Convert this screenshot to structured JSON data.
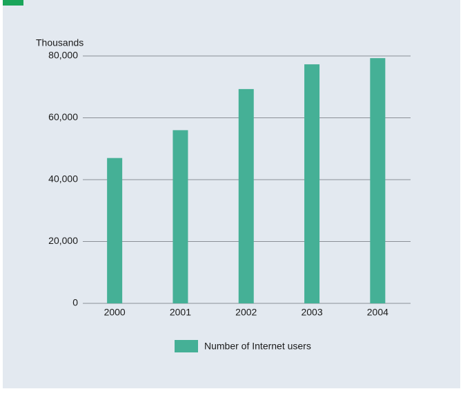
{
  "chart_data": {
    "type": "bar",
    "y_axis_label": "Thousands",
    "categories": [
      "2000",
      "2001",
      "2002",
      "2003",
      "2004"
    ],
    "series": [
      {
        "name": "Number of Internet users",
        "color": "#45b096",
        "values": [
          47000,
          56000,
          69300,
          77300,
          79300
        ]
      }
    ],
    "ylim": [
      0,
      80000
    ],
    "yticks": [
      0,
      {
        "value": 20000,
        "label": "20,000"
      },
      {
        "value": 40000,
        "label": "40,000"
      },
      {
        "value": 60000,
        "label": "60,000"
      },
      {
        "value": 80000,
        "label": "80,000"
      }
    ],
    "grid": true
  }
}
